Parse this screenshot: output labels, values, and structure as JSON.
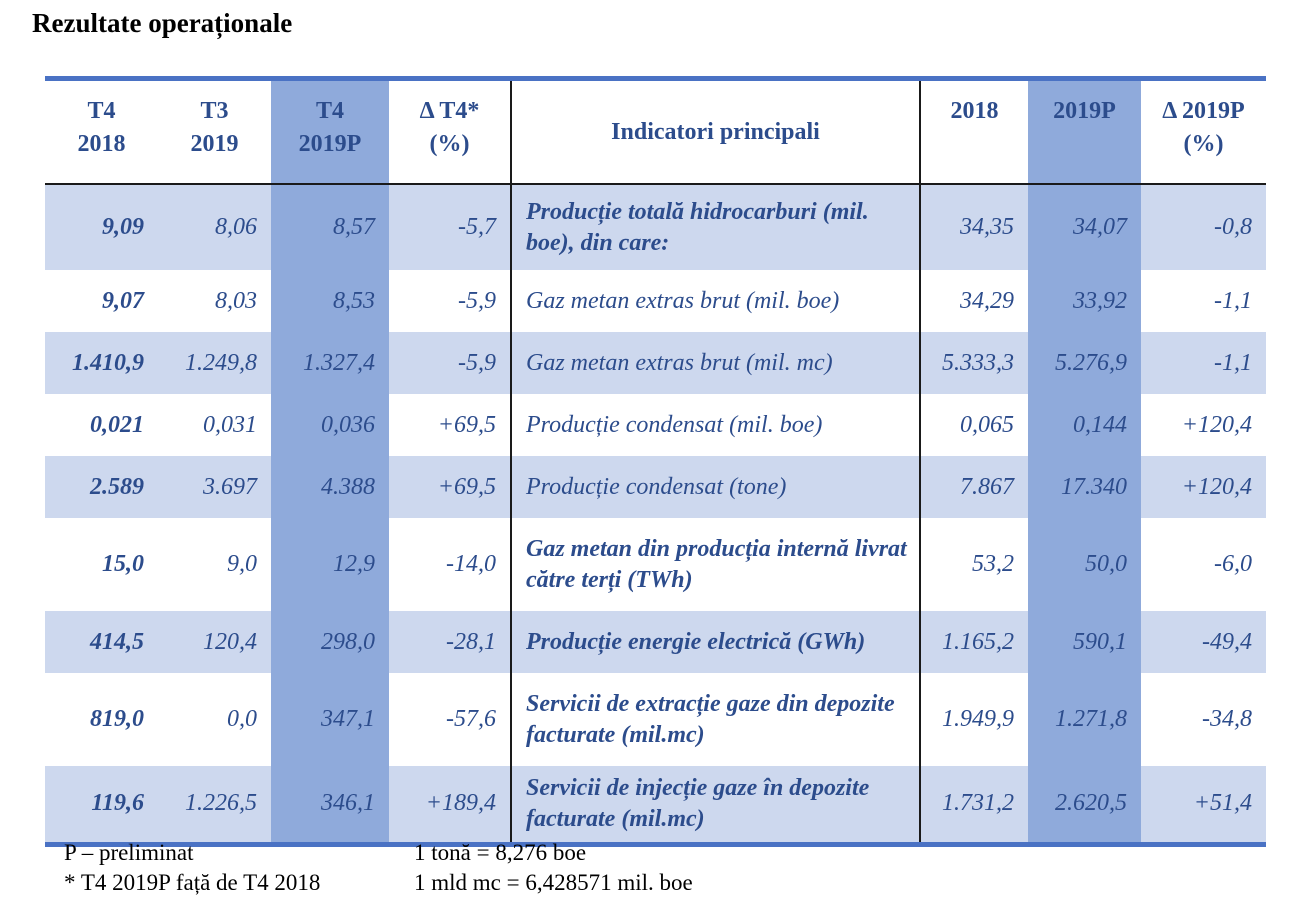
{
  "title": "Rezultate operaționale",
  "table": {
    "headers": {
      "t4_2018": [
        "T4",
        "2018"
      ],
      "t3_2019": [
        "T3",
        "2019"
      ],
      "t4_2019p": [
        "T4",
        "2019P"
      ],
      "delta_t4": [
        "Δ T4*",
        "(%)"
      ],
      "indicator": "Indicatori principali",
      "y2018": "2018",
      "y2019p": "2019P",
      "delta_2019p": [
        "Δ 2019P",
        "(%)"
      ]
    },
    "rows": [
      {
        "t4_2018": "9,09",
        "t3_2019": "8,06",
        "t4_2019p": "8,57",
        "delta_t4": "-5,7",
        "indicator": "Producție totală hidrocarburi (mil. boe), din care:",
        "y2018": "34,35",
        "y2019p": "34,07",
        "delta_2019p": "-0,8"
      },
      {
        "t4_2018": "9,07",
        "t3_2019": "8,03",
        "t4_2019p": "8,53",
        "delta_t4": "-5,9",
        "indicator": "Gaz metan extras brut (mil. boe)",
        "y2018": "34,29",
        "y2019p": "33,92",
        "delta_2019p": "-1,1"
      },
      {
        "t4_2018": "1.410,9",
        "t3_2019": "1.249,8",
        "t4_2019p": "1.327,4",
        "delta_t4": "-5,9",
        "indicator": "Gaz metan extras brut (mil. mc)",
        "y2018": "5.333,3",
        "y2019p": "5.276,9",
        "delta_2019p": "-1,1"
      },
      {
        "t4_2018": "0,021",
        "t3_2019": "0,031",
        "t4_2019p": "0,036",
        "delta_t4": "+69,5",
        "indicator": "Producție condensat (mil. boe)",
        "y2018": "0,065",
        "y2019p": "0,144",
        "delta_2019p": "+120,4"
      },
      {
        "t4_2018": "2.589",
        "t3_2019": "3.697",
        "t4_2019p": "4.388",
        "delta_t4": "+69,5",
        "indicator": "Producție condensat (tone)",
        "y2018": "7.867",
        "y2019p": "17.340",
        "delta_2019p": "+120,4"
      },
      {
        "t4_2018": "15,0",
        "t3_2019": "9,0",
        "t4_2019p": "12,9",
        "delta_t4": "-14,0",
        "indicator": "Gaz metan din producția internă livrat către terți (TWh)",
        "y2018": "53,2",
        "y2019p": "50,0",
        "delta_2019p": "-6,0"
      },
      {
        "t4_2018": "414,5",
        "t3_2019": "120,4",
        "t4_2019p": "298,0",
        "delta_t4": "-28,1",
        "indicator": "Producție energie electrică (GWh)",
        "y2018": "1.165,2",
        "y2019p": "590,1",
        "delta_2019p": "-49,4"
      },
      {
        "t4_2018": "819,0",
        "t3_2019": "0,0",
        "t4_2019p": "347,1",
        "delta_t4": "-57,6",
        "indicator": "Servicii de extracție gaze din depozite facturate (mil.mc)",
        "y2018": "1.949,9",
        "y2019p": "1.271,8",
        "delta_2019p": "-34,8"
      },
      {
        "t4_2018": "119,6",
        "t3_2019": "1.226,5",
        "t4_2019p": "346,1",
        "delta_t4": "+189,4",
        "indicator": "Servicii de injecție gaze în depozite facturate (mil.mc)",
        "y2018": "1.731,2",
        "y2019p": "2.620,5",
        "delta_2019p": "+51,4"
      }
    ]
  },
  "footnotes": {
    "preliminary": "P – preliminat",
    "comparison": "* T4 2019P față de T4 2018",
    "ton_conversion": "1 tonă = 8,276 boe",
    "mc_conversion": "1 mld mc = 6,428571 mil. boe"
  }
}
